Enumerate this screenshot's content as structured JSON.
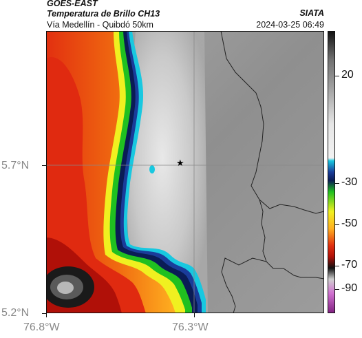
{
  "header": {
    "satellite": "GOES-EAST",
    "product": "Temperatura de Brillo CH13",
    "route": "Vía Medellín - Quibdó 50km",
    "organization": "SIATA",
    "timestamp": "2024-03-25 06:49"
  },
  "axes": {
    "y_ticks": [
      "5.7°N",
      "5.2°N"
    ],
    "x_ticks": [
      "76.8°W",
      "76.3°W"
    ]
  },
  "colorbar": {
    "ticks": [
      "20",
      "-30",
      "-50",
      "-70",
      "-90"
    ],
    "units_note": ""
  },
  "marker": {
    "symbol": "★"
  },
  "colors": {
    "background": "#ffffff",
    "gridline": "#999999"
  }
}
